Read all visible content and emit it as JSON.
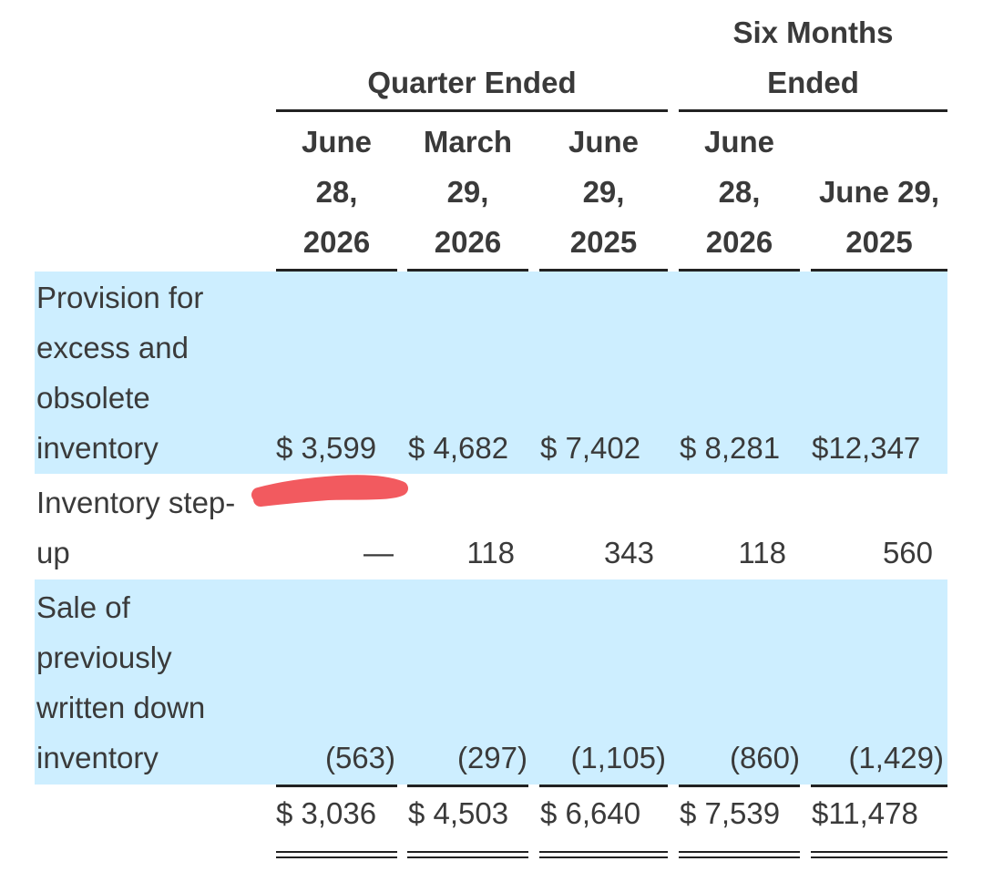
{
  "header": {
    "group_quarter": "Quarter Ended",
    "group_six_line1": "Six Months",
    "group_six_line2": "Ended",
    "columns": [
      {
        "l1": "June",
        "l2": "28,",
        "l3": "2026"
      },
      {
        "l1": "March",
        "l2": "29,",
        "l3": "2026"
      },
      {
        "l1": "June",
        "l2": "29,",
        "l3": "2025"
      },
      {
        "l1": "June",
        "l2": "28,",
        "l3": "2026"
      },
      {
        "l1": "",
        "l2": "June 29,",
        "l3": "2025"
      }
    ]
  },
  "rows": [
    {
      "label": "Provision for\nexcess and\nobsolete\ninventory",
      "values": [
        "$ 3,599",
        "$ 4,682",
        "$  7,402",
        "$ 8,281",
        "$12,347"
      ]
    },
    {
      "label": "Inventory step-\nup",
      "values": [
        "—",
        "118",
        "343",
        "118",
        "560"
      ]
    },
    {
      "label": "Sale of\npreviously\nwritten down\ninventory",
      "values": [
        "(563)",
        "(297)",
        "(1,105)",
        "(860)",
        "(1,429)"
      ]
    }
  ],
  "total": {
    "values": [
      "$ 3,036",
      "$ 4,503",
      "$  6,640",
      "$ 7,539",
      "$11,478"
    ]
  },
  "colors": {
    "band": "#cdeeff",
    "redaction": "#f25a5f"
  }
}
